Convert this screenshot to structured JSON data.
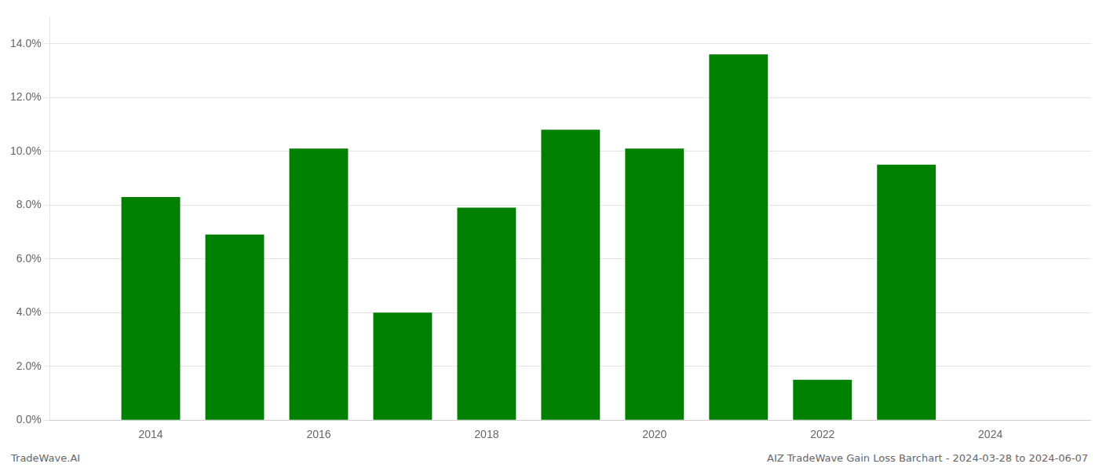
{
  "chart_data": {
    "type": "bar",
    "x": [
      2014,
      2015,
      2016,
      2017,
      2018,
      2019,
      2020,
      2021,
      2022,
      2023,
      2024
    ],
    "values": [
      0.083,
      0.069,
      0.101,
      0.04,
      0.079,
      0.108,
      0.101,
      0.136,
      0.015,
      0.095,
      0.0
    ],
    "color": "#008000",
    "xlim": [
      2012.8,
      2025.2
    ],
    "xticks": [
      2014,
      2016,
      2018,
      2020,
      2022,
      2024
    ],
    "ylim": [
      0,
      0.15
    ],
    "yticks": [
      {
        "value": 0.0,
        "label": "0.0%"
      },
      {
        "value": 0.02,
        "label": "2.0%"
      },
      {
        "value": 0.04,
        "label": "4.0%"
      },
      {
        "value": 0.06,
        "label": "6.0%"
      },
      {
        "value": 0.08,
        "label": "8.0%"
      },
      {
        "value": 0.1,
        "label": "10.0%"
      },
      {
        "value": 0.12,
        "label": "12.0%"
      },
      {
        "value": 0.14,
        "label": "14.0%"
      }
    ],
    "grid": "y",
    "annotations": [
      "TradeWave.AI",
      "AIZ TradeWave Gain Loss Barchart - 2024-03-28 to 2024-06-07"
    ]
  }
}
